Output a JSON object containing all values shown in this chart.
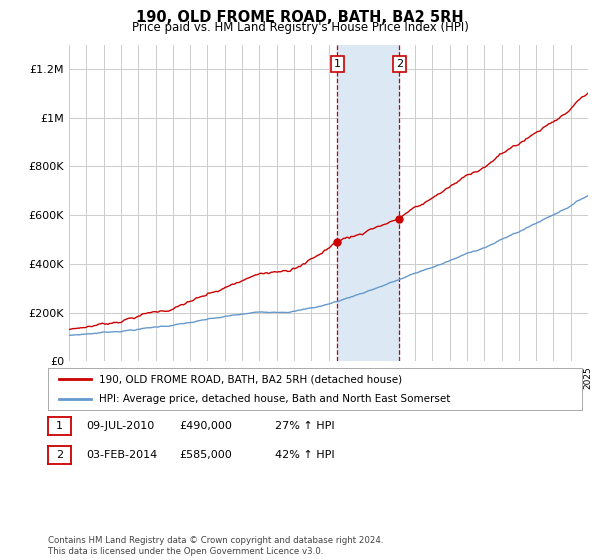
{
  "title": "190, OLD FROME ROAD, BATH, BA2 5RH",
  "subtitle": "Price paid vs. HM Land Registry's House Price Index (HPI)",
  "ylim": [
    0,
    1300000
  ],
  "yticks": [
    0,
    200000,
    400000,
    600000,
    800000,
    1000000,
    1200000
  ],
  "ytick_labels": [
    "£0",
    "£200K",
    "£400K",
    "£600K",
    "£800K",
    "£1M",
    "£1.2M"
  ],
  "x_start_year": 1995,
  "x_end_year": 2025,
  "sale1_date": 2010.52,
  "sale1_price": 490000,
  "sale1_label": "1",
  "sale2_date": 2014.09,
  "sale2_price": 585000,
  "sale2_label": "2",
  "sale1_info": [
    "09-JUL-2010",
    "£490,000",
    "27% ↑ HPI"
  ],
  "sale2_info": [
    "03-FEB-2014",
    "£585,000",
    "42% ↑ HPI"
  ],
  "line1_color": "#cc0000",
  "line2_color": "#6699cc",
  "legend_line1": "190, OLD FROME ROAD, BATH, BA2 5RH (detached house)",
  "legend_line2": "HPI: Average price, detached house, Bath and North East Somerset",
  "footer": "Contains HM Land Registry data © Crown copyright and database right 2024.\nThis data is licensed under the Open Government Licence v3.0.",
  "bg_color": "#ffffff",
  "grid_color": "#cccccc",
  "annotation_bg": "#dce9f5",
  "annotation_border": "#cc0000"
}
